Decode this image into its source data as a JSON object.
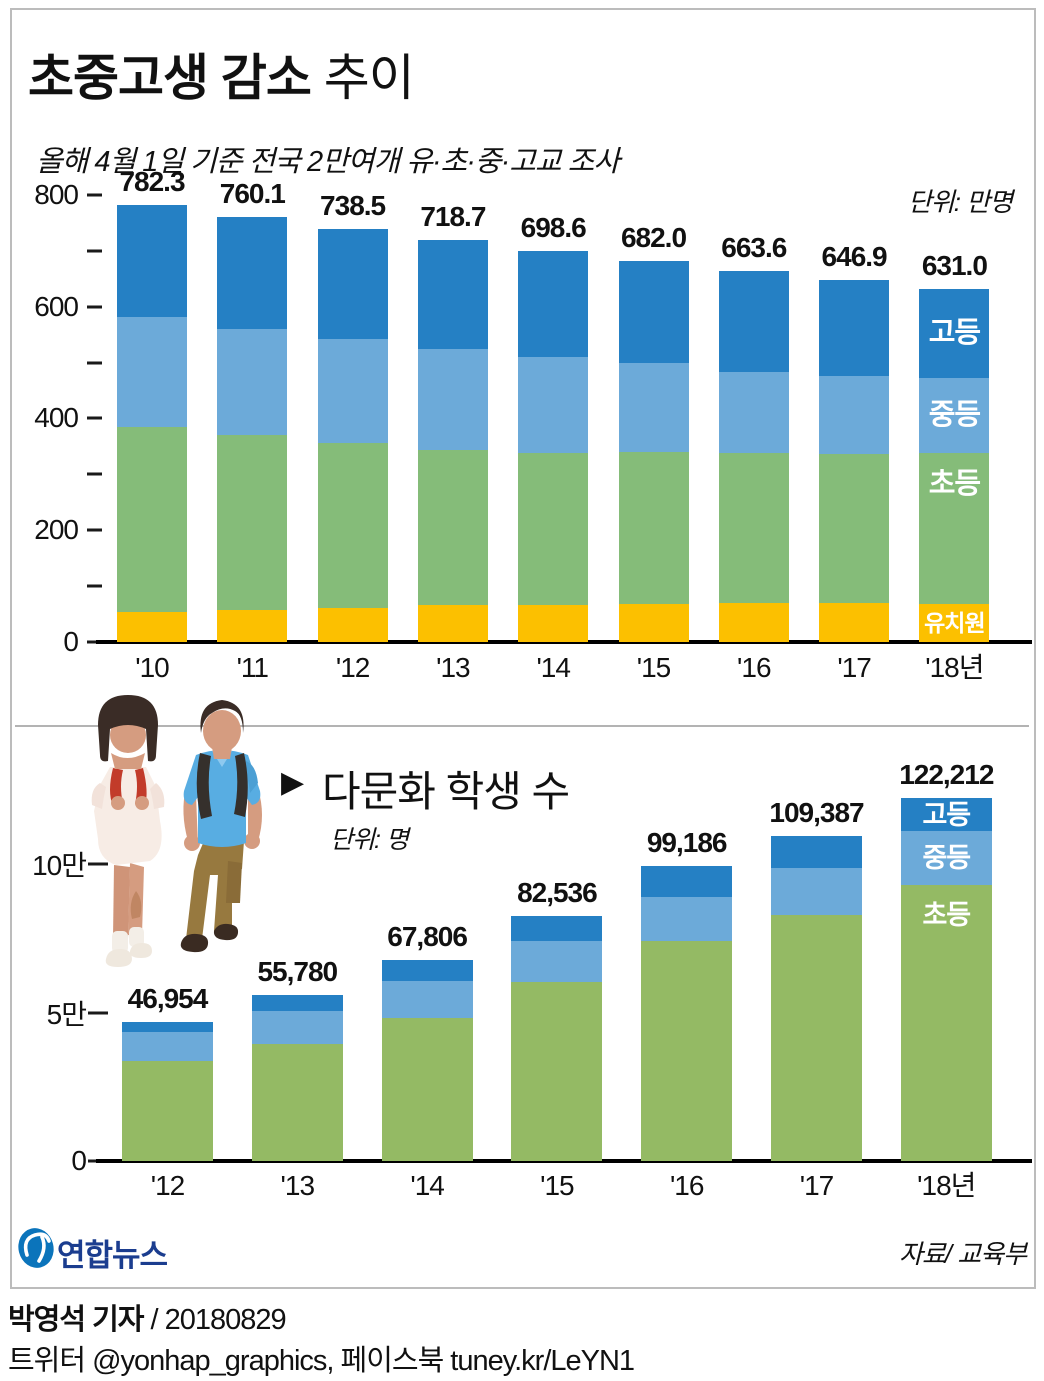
{
  "page": {
    "title_bold": "초중고생 감소",
    "title_regular": " 추이",
    "subtitle": "올해 4월 1일 기준 전국 2만여개  유·초·중·고교 조사",
    "pointer_icon": "▶",
    "logo_text": "연합뉴스",
    "source": "자료/ 교육부",
    "byline_name": "박영석 기자",
    "byline_date": " / 20180829",
    "social": "트위터 @yonhap_graphics, 페이스북 tuney.kr/LeYN1"
  },
  "chart_data": [
    {
      "id": "student-decline",
      "type": "bar",
      "title": "초중고생 감소 추이",
      "unit_label": "단위: 만명",
      "categories": [
        "'10",
        "'11",
        "'12",
        "'13",
        "'14",
        "'15",
        "'16",
        "'17",
        "'18년"
      ],
      "totals": [
        782.3,
        760.1,
        738.5,
        718.7,
        698.6,
        682.0,
        663.6,
        646.9,
        631.0
      ],
      "totals_display": [
        "782.3",
        "760.1",
        "738.5",
        "718.7",
        "698.6",
        "682.0",
        "663.6",
        "646.9",
        "631.0"
      ],
      "series": [
        {
          "name": "유치원",
          "color": "#FCC000",
          "values": [
            53.9,
            56.5,
            61.4,
            65.8,
            65.3,
            68.3,
            70.4,
            69.5,
            67.6
          ]
        },
        {
          "name": "초등",
          "color": "#85BC79",
          "values": [
            330.0,
            313.2,
            295.2,
            278.4,
            272.9,
            271.5,
            267.3,
            267.4,
            271.1
          ]
        },
        {
          "name": "중등",
          "color": "#6CAAD9",
          "values": [
            197.5,
            191.1,
            184.9,
            180.5,
            171.8,
            158.6,
            145.7,
            138.1,
            133.4
          ]
        },
        {
          "name": "고등",
          "color": "#2580C4",
          "values": [
            200.9,
            199.3,
            197.0,
            194.0,
            188.6,
            183.6,
            180.2,
            171.9,
            158.9
          ]
        }
      ],
      "y_tick_labels": [
        "0",
        "200",
        "400",
        "600",
        "800"
      ],
      "ylim": [
        0,
        800
      ],
      "grid": false,
      "legend_position": "inside-last-bar"
    },
    {
      "id": "multicultural-students",
      "type": "bar",
      "title": "다문화 학생 수",
      "unit_label": "단위: 명",
      "categories": [
        "'12",
        "'13",
        "'14",
        "'15",
        "'16",
        "'17",
        "'18년"
      ],
      "totals": [
        46954,
        55780,
        67806,
        82536,
        99186,
        109387,
        122212
      ],
      "totals_display": [
        "46,954",
        "55,780",
        "67,806",
        "82,536",
        "99,186",
        "109,387",
        "122,212"
      ],
      "series": [
        {
          "name": "초등",
          "color": "#94BA64",
          "values": [
            33740,
            39360,
            48225,
            60162,
            73972,
            82733,
            93027
          ]
        },
        {
          "name": "중등",
          "color": "#6CAAD9",
          "values": [
            9627,
            11280,
            12506,
            13827,
            15080,
            15945,
            18068
          ]
        },
        {
          "name": "고등",
          "color": "#2580C4",
          "values": [
            3587,
            5140,
            7075,
            8547,
            10134,
            10709,
            11117
          ]
        }
      ],
      "y_tick_labels": [
        "0",
        "5만",
        "10만"
      ],
      "ylim": [
        0,
        100000
      ],
      "grid": false,
      "legend_position": "inside-last-bar"
    }
  ]
}
